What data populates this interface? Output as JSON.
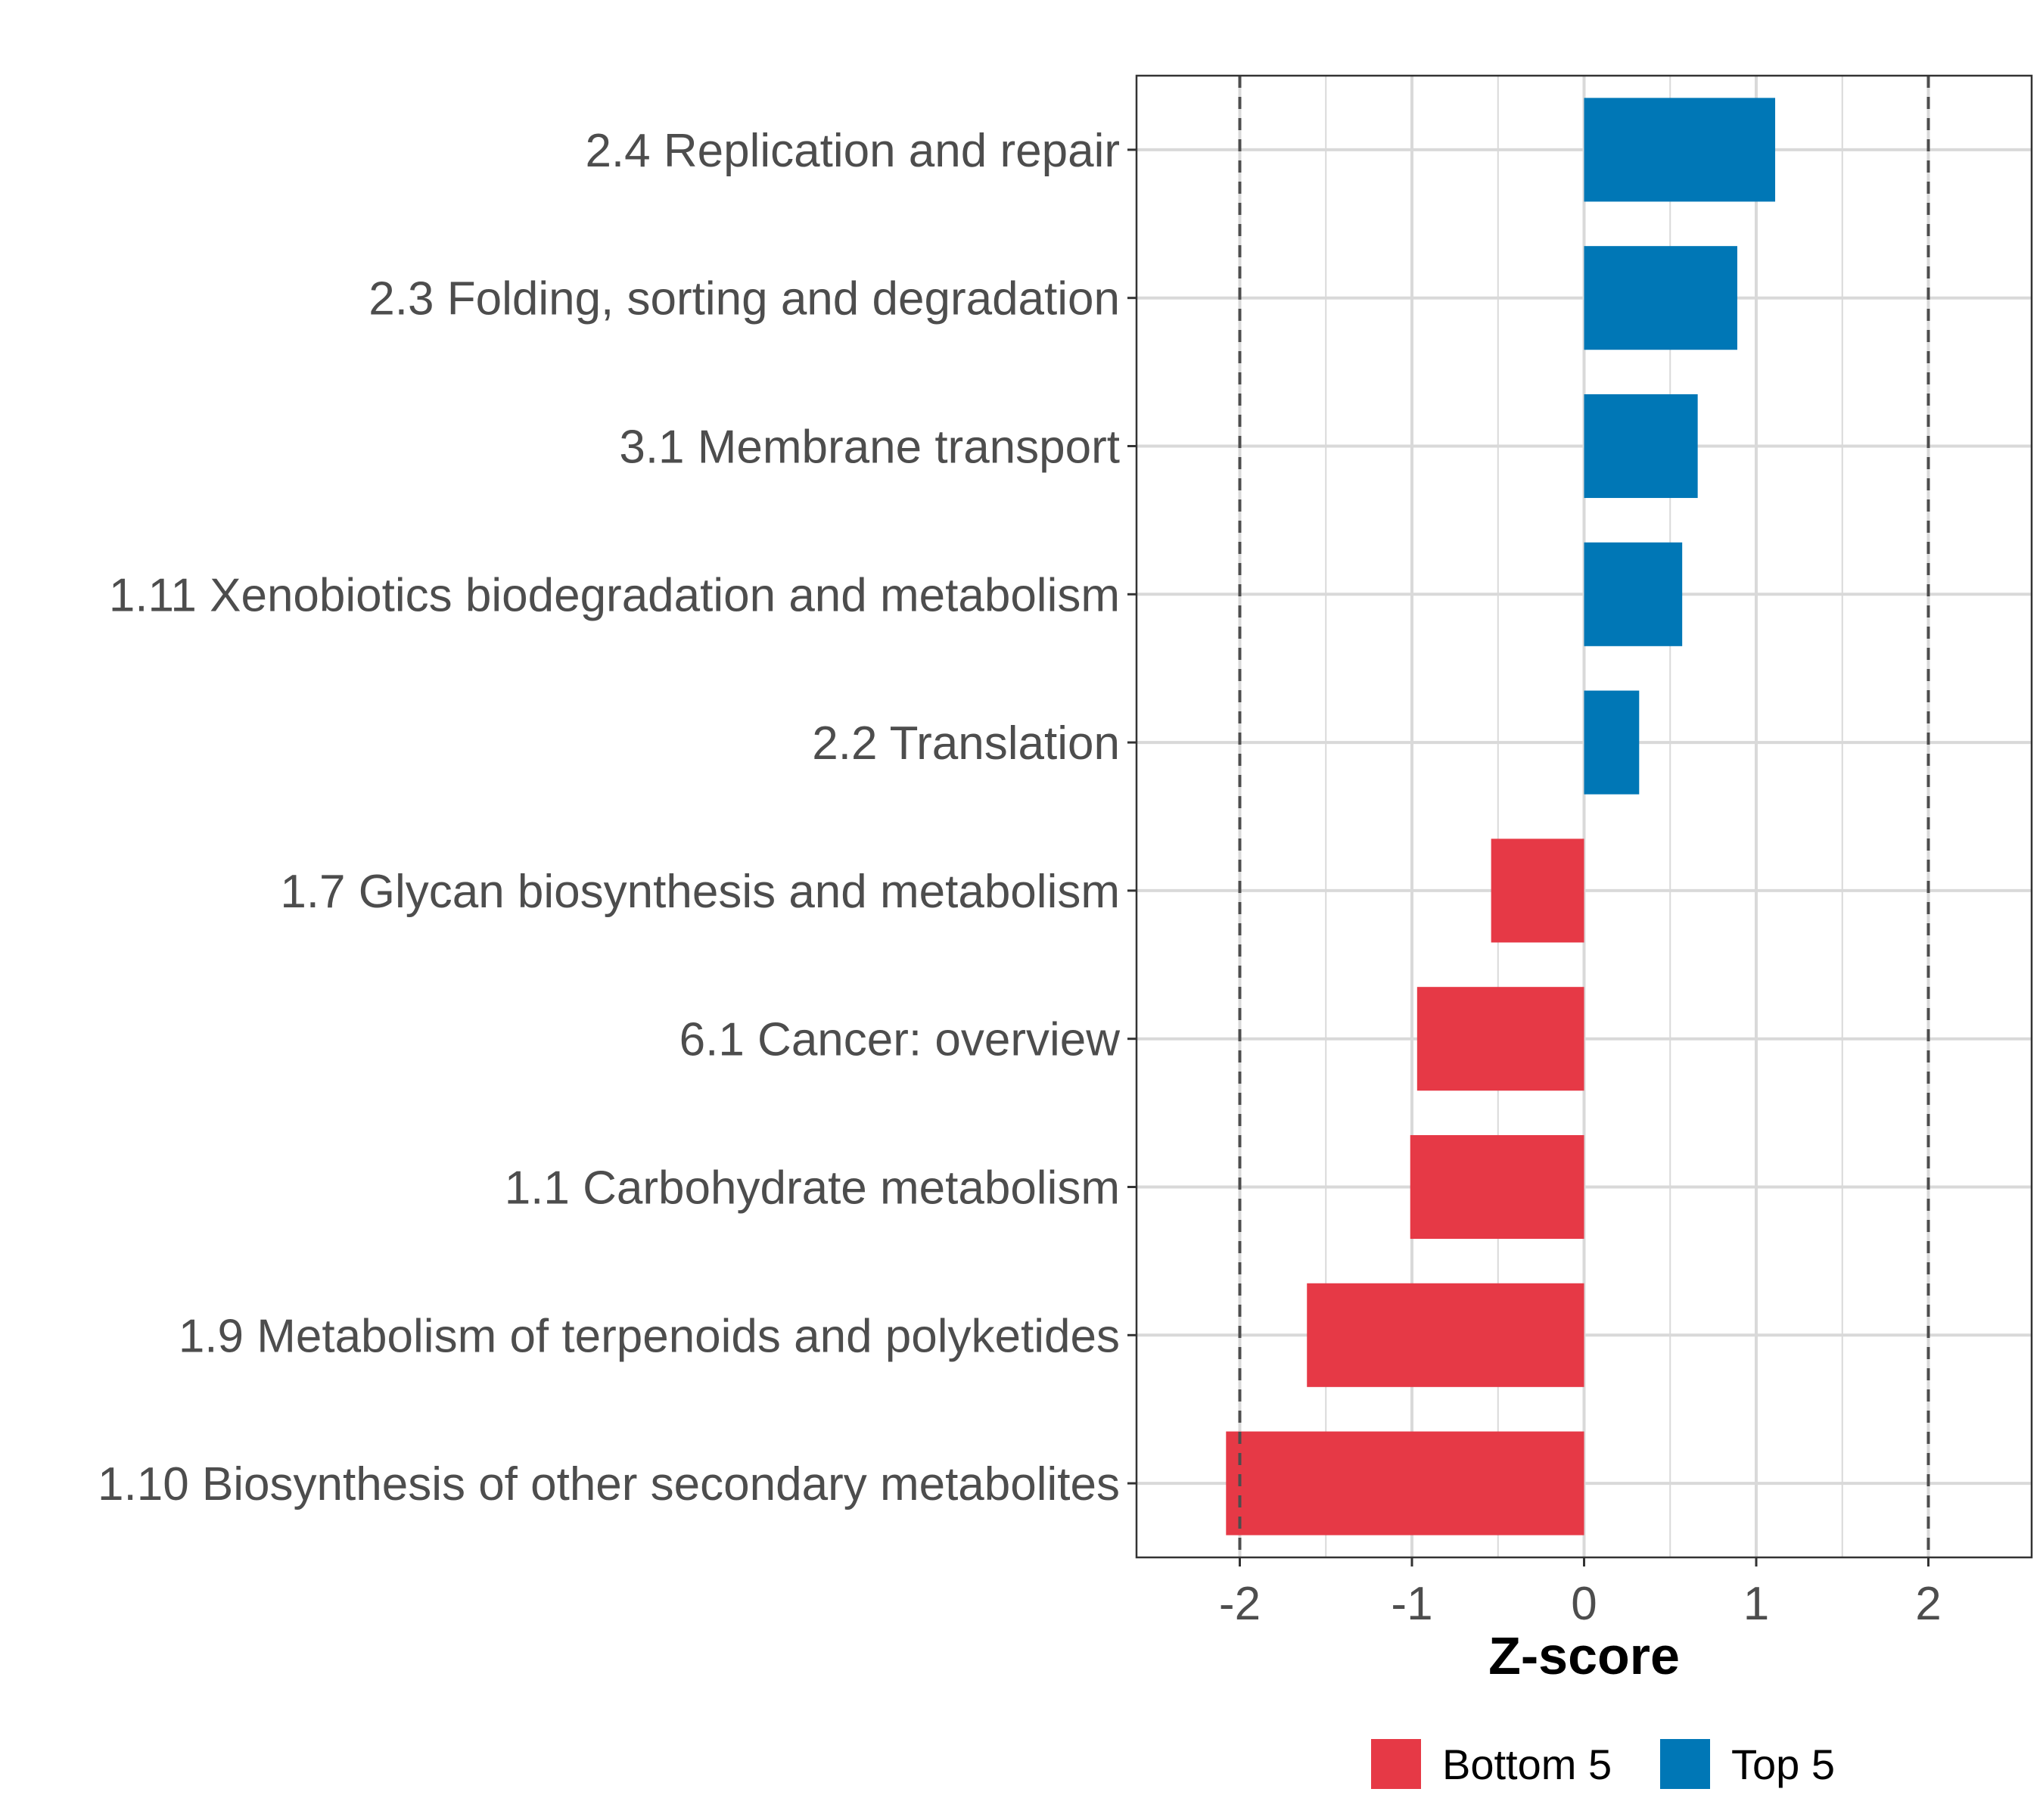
{
  "chart_data": {
    "type": "bar",
    "orientation": "horizontal",
    "categories": [
      "2.4 Replication and repair",
      "2.3 Folding, sorting and degradation",
      "3.1 Membrane transport",
      "1.11 Xenobiotics biodegradation and metabolism",
      "2.2 Translation",
      "1.7 Glycan biosynthesis and metabolism",
      "6.1 Cancer: overview",
      "1.1 Carbohydrate metabolism",
      "1.9 Metabolism of terpenoids and polyketides",
      "1.10 Biosynthesis of other secondary metabolites"
    ],
    "values": [
      1.11,
      0.89,
      0.66,
      0.57,
      0.32,
      -0.54,
      -0.97,
      -1.01,
      -1.61,
      -2.08
    ],
    "groups": [
      "Top 5",
      "Top 5",
      "Top 5",
      "Top 5",
      "Top 5",
      "Bottom 5",
      "Bottom 5",
      "Bottom 5",
      "Bottom 5",
      "Bottom 5"
    ],
    "xlabel": "Z-score",
    "ylabel": "",
    "xlim": [
      -2.6,
      2.6
    ],
    "xticks": [
      -2,
      -1,
      0,
      1,
      2
    ],
    "xtick_labels": [
      "-2",
      "-1",
      "0",
      "1",
      "2"
    ],
    "reference_lines": [
      -2,
      2
    ],
    "grid": true,
    "legend": {
      "placement": "bottom",
      "entries": [
        {
          "label": "Bottom 5",
          "color": "#e63946"
        },
        {
          "label": "Top 5",
          "color": "#0077b6"
        }
      ]
    }
  },
  "colors": {
    "top": "#0077b6",
    "bottom": "#e63946",
    "grid": "#d9d9d9",
    "reference_line": "#4d4d4d",
    "panel_border": "#333333"
  }
}
